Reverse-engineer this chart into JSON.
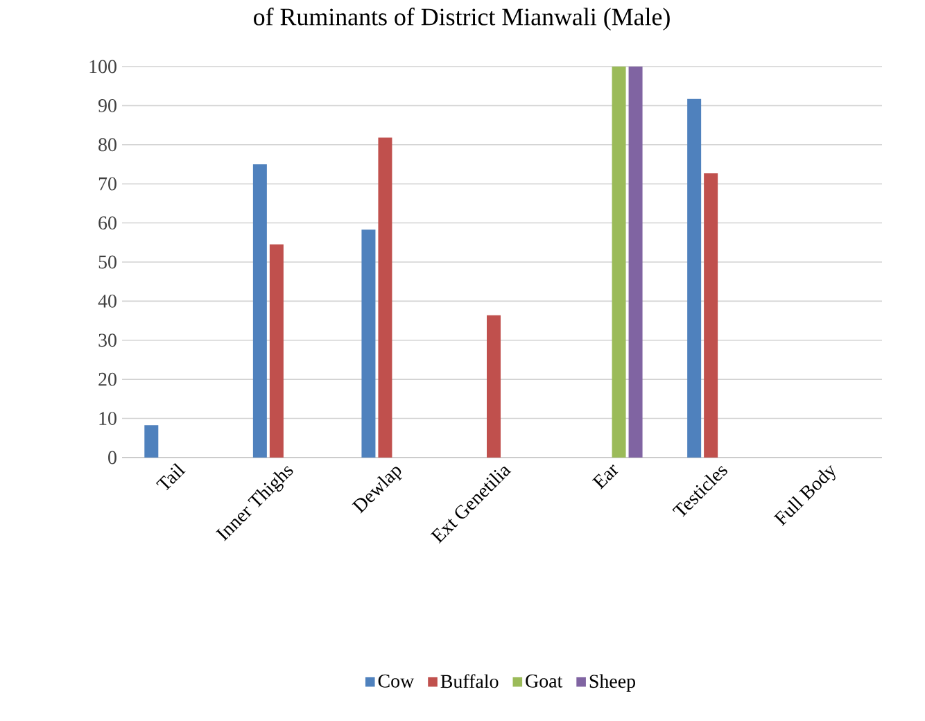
{
  "chart_data": {
    "type": "bar",
    "title": "of Ruminants of District Mianwali (Male)",
    "categories": [
      "Tail",
      "Inner Thighs",
      "Dewlap",
      "Ext Genetilia",
      "Ear",
      "Testicles",
      "Full Body"
    ],
    "series": [
      {
        "name": "Cow",
        "color": "#4f81bd",
        "values": [
          8.3,
          75,
          58.3,
          null,
          null,
          91.7,
          null
        ]
      },
      {
        "name": "Buffalo",
        "color": "#c0504d",
        "values": [
          null,
          54.5,
          81.8,
          36.4,
          null,
          72.7,
          null
        ]
      },
      {
        "name": "Goat",
        "color": "#9bbb59",
        "values": [
          null,
          null,
          null,
          null,
          100,
          null,
          null
        ]
      },
      {
        "name": "Sheep",
        "color": "#8064a2",
        "values": [
          null,
          null,
          null,
          null,
          100,
          null,
          null
        ]
      }
    ],
    "ylim": [
      0,
      100
    ],
    "yticks": [
      0,
      10,
      20,
      30,
      40,
      50,
      60,
      70,
      80,
      90,
      100
    ],
    "grid": "y",
    "legend": "bottom"
  }
}
